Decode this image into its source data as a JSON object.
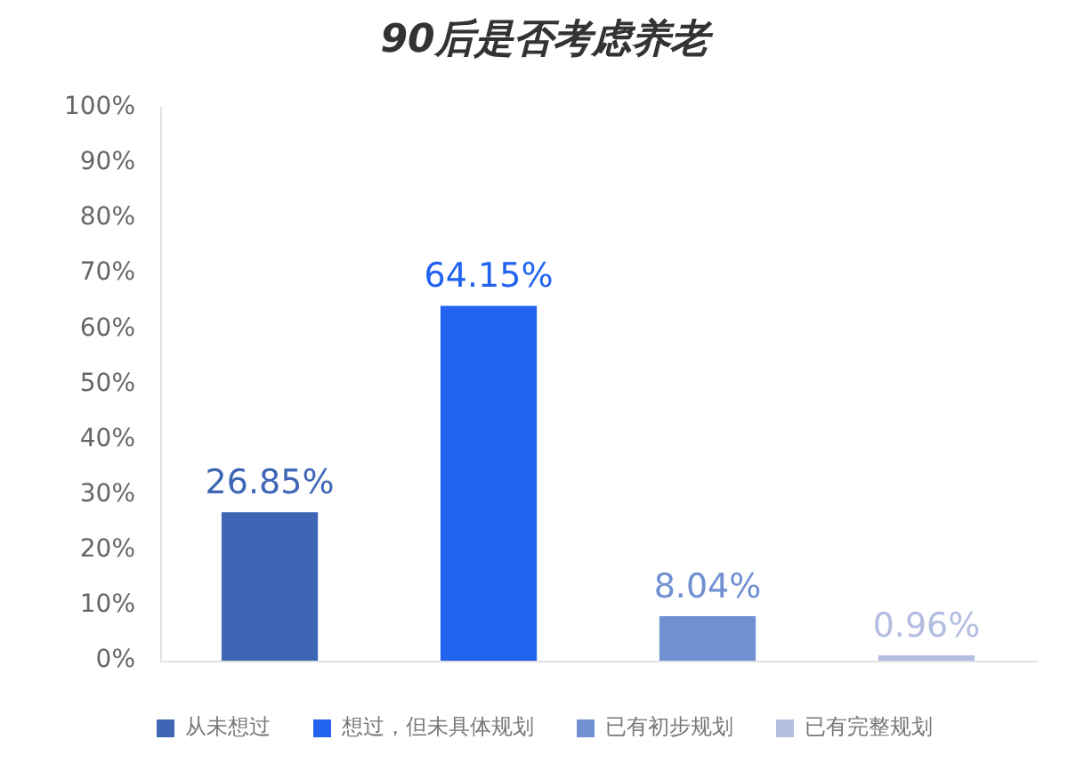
{
  "chart_data": {
    "type": "bar",
    "title": "90后是否考虑养老",
    "categories": [
      null
    ],
    "series": [
      {
        "name": "从未想过",
        "color": "#3d66b5",
        "values": [
          26.85
        ],
        "value_labels": [
          "26.85%"
        ]
      },
      {
        "name": "想过，但未具体规划",
        "color": "#2163f0",
        "values": [
          64.15
        ],
        "value_labels": [
          "64.15%"
        ]
      },
      {
        "name": "已有初步规划",
        "color": "#7090d2",
        "values": [
          8.04
        ],
        "value_labels": [
          "8.04%"
        ]
      },
      {
        "name": "已有完整规划",
        "color": "#b3bde0",
        "values": [
          0.96
        ],
        "value_labels": [
          "0.96%"
        ]
      }
    ],
    "ylim": [
      0,
      100
    ],
    "yticks": [
      {
        "value": 0,
        "label": "0%"
      },
      {
        "value": 10,
        "label": "10%"
      },
      {
        "value": 20,
        "label": "20%"
      },
      {
        "value": 30,
        "label": "30%"
      },
      {
        "value": 40,
        "label": "40%"
      },
      {
        "value": 50,
        "label": "50%"
      },
      {
        "value": 60,
        "label": "60%"
      },
      {
        "value": 70,
        "label": "70%"
      },
      {
        "value": 80,
        "label": "80%"
      },
      {
        "value": 90,
        "label": "90%"
      },
      {
        "value": 100,
        "label": "100%"
      }
    ],
    "grid": false,
    "legend": "bottom"
  }
}
